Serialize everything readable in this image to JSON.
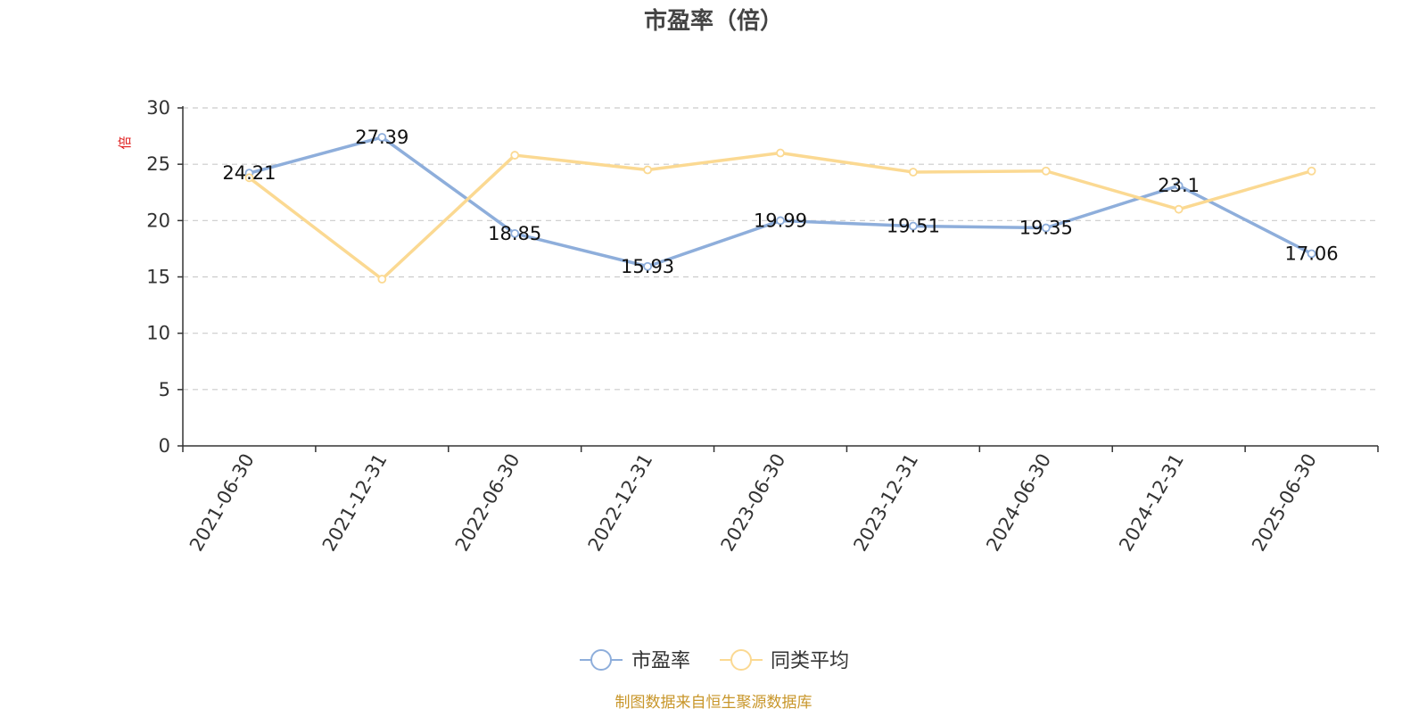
{
  "chart_data": {
    "type": "line",
    "title": "市盈率（倍）",
    "ylabel": "倍",
    "categories": [
      "2021-06-30",
      "2021-12-31",
      "2022-06-30",
      "2022-12-31",
      "2023-06-30",
      "2023-12-31",
      "2024-06-30",
      "2024-12-31",
      "2025-06-30"
    ],
    "ylim": [
      0,
      30
    ],
    "yticks": [
      0,
      5,
      10,
      15,
      20,
      25,
      30
    ],
    "grid": true,
    "legend_position": "bottom",
    "series": [
      {
        "name": "市盈率",
        "color": "#8eaedb",
        "values": [
          24.21,
          27.39,
          18.85,
          15.93,
          19.99,
          19.51,
          19.35,
          23.1,
          17.06
        ],
        "labels": [
          "24.21",
          "27.39",
          "18.85",
          "15.93",
          "19.99",
          "19.51",
          "19.35",
          "23.1",
          "17.06"
        ]
      },
      {
        "name": "同类平均",
        "color": "#fbd992",
        "values": [
          23.8,
          14.8,
          25.8,
          24.5,
          26.0,
          24.3,
          24.4,
          21.0,
          24.4
        ]
      }
    ],
    "source_note": "制图数据来自恒生聚源数据库"
  }
}
